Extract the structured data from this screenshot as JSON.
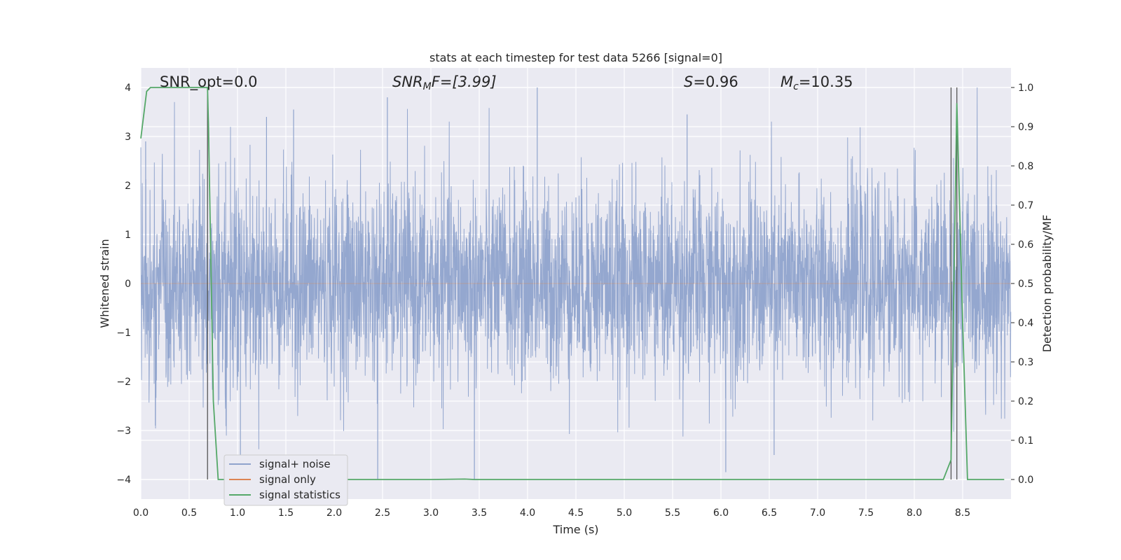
{
  "chart_data": {
    "type": "line",
    "title": "stats at each timestep for test data 5266 [signal=0]",
    "xlabel": "Time (s)",
    "ylabel": "Whitened strain",
    "y2label": "Detection probability/MF",
    "xlim": [
      0.0,
      9.0
    ],
    "ylim": [
      -4.4,
      4.4
    ],
    "y2lim": [
      -0.05,
      1.05
    ],
    "xticks": [
      "0.0",
      "0.5",
      "1.0",
      "1.5",
      "2.0",
      "2.5",
      "3.0",
      "3.5",
      "4.0",
      "4.5",
      "5.0",
      "5.5",
      "6.0",
      "6.5",
      "7.0",
      "7.5",
      "8.0",
      "8.5"
    ],
    "yticks": [
      "4",
      "3",
      "2",
      "1",
      "0",
      "−1",
      "−2",
      "−3",
      "−4"
    ],
    "y2ticks": [
      "1.0",
      "0.9",
      "0.8",
      "0.7",
      "0.6",
      "0.5",
      "0.4",
      "0.3",
      "0.2",
      "0.1",
      "0.0"
    ],
    "grid": true,
    "legend_position": "lower-left",
    "annotations": {
      "snr_opt": "SNR_opt=0.0",
      "snr_mf": "SNR",
      "snr_mf_sub": "M",
      "snr_mf_rest": "F=[3.99]",
      "s_sym": "S",
      "s_val": "=0.96",
      "mc_sym": "M",
      "mc_sub": "c",
      "mc_val": "=10.35"
    },
    "vertical_lines_x": [
      0.69,
      8.38,
      8.44
    ],
    "series": [
      {
        "name": "signal+ noise",
        "color": "#8fa3cc",
        "description_axis": "left",
        "envelope": {
          "sigma": 1.0,
          "max_abs_peak": 4.0
        },
        "notable_peaks": [
          {
            "x": 0.05,
            "y": 2.9
          },
          {
            "x": 0.15,
            "y": -2.9
          },
          {
            "x": 1.03,
            "y": -3.8
          },
          {
            "x": 1.3,
            "y": 3.4
          },
          {
            "x": 1.58,
            "y": 3.55
          },
          {
            "x": 2.45,
            "y": -4.0
          },
          {
            "x": 2.55,
            "y": 3.8
          },
          {
            "x": 3.45,
            "y": -4.0
          },
          {
            "x": 4.1,
            "y": 4.0
          },
          {
            "x": 5.65,
            "y": 3.45
          },
          {
            "x": 6.05,
            "y": -3.85
          },
          {
            "x": 6.55,
            "y": -3.5
          }
        ]
      },
      {
        "name": "signal only",
        "color": "#dd8452",
        "x": [
          0.0,
          9.0
        ],
        "y": [
          0.0,
          0.0
        ]
      },
      {
        "name": "signal statistics",
        "color": "#55a868",
        "axis": "right",
        "x": [
          0.0,
          0.06,
          0.1,
          0.2,
          0.3,
          0.4,
          0.5,
          0.6,
          0.69,
          0.7,
          0.75,
          0.8,
          1.0,
          2.0,
          3.0,
          3.35,
          3.45,
          4.0,
          5.0,
          6.0,
          7.0,
          8.0,
          8.3,
          8.38,
          8.44,
          8.5,
          8.55,
          8.6,
          8.7,
          8.8,
          8.93
        ],
        "y": [
          0.87,
          0.99,
          1.0,
          1.0,
          1.0,
          1.0,
          1.0,
          1.0,
          1.0,
          0.9,
          0.2,
          0.0,
          0.0,
          0.0,
          0.0,
          0.001,
          0.0,
          0.0,
          0.0,
          0.0,
          0.0,
          0.0,
          0.0,
          0.05,
          0.96,
          0.4,
          0.0,
          0.0,
          0.0,
          0.0,
          0.0
        ]
      }
    ]
  }
}
